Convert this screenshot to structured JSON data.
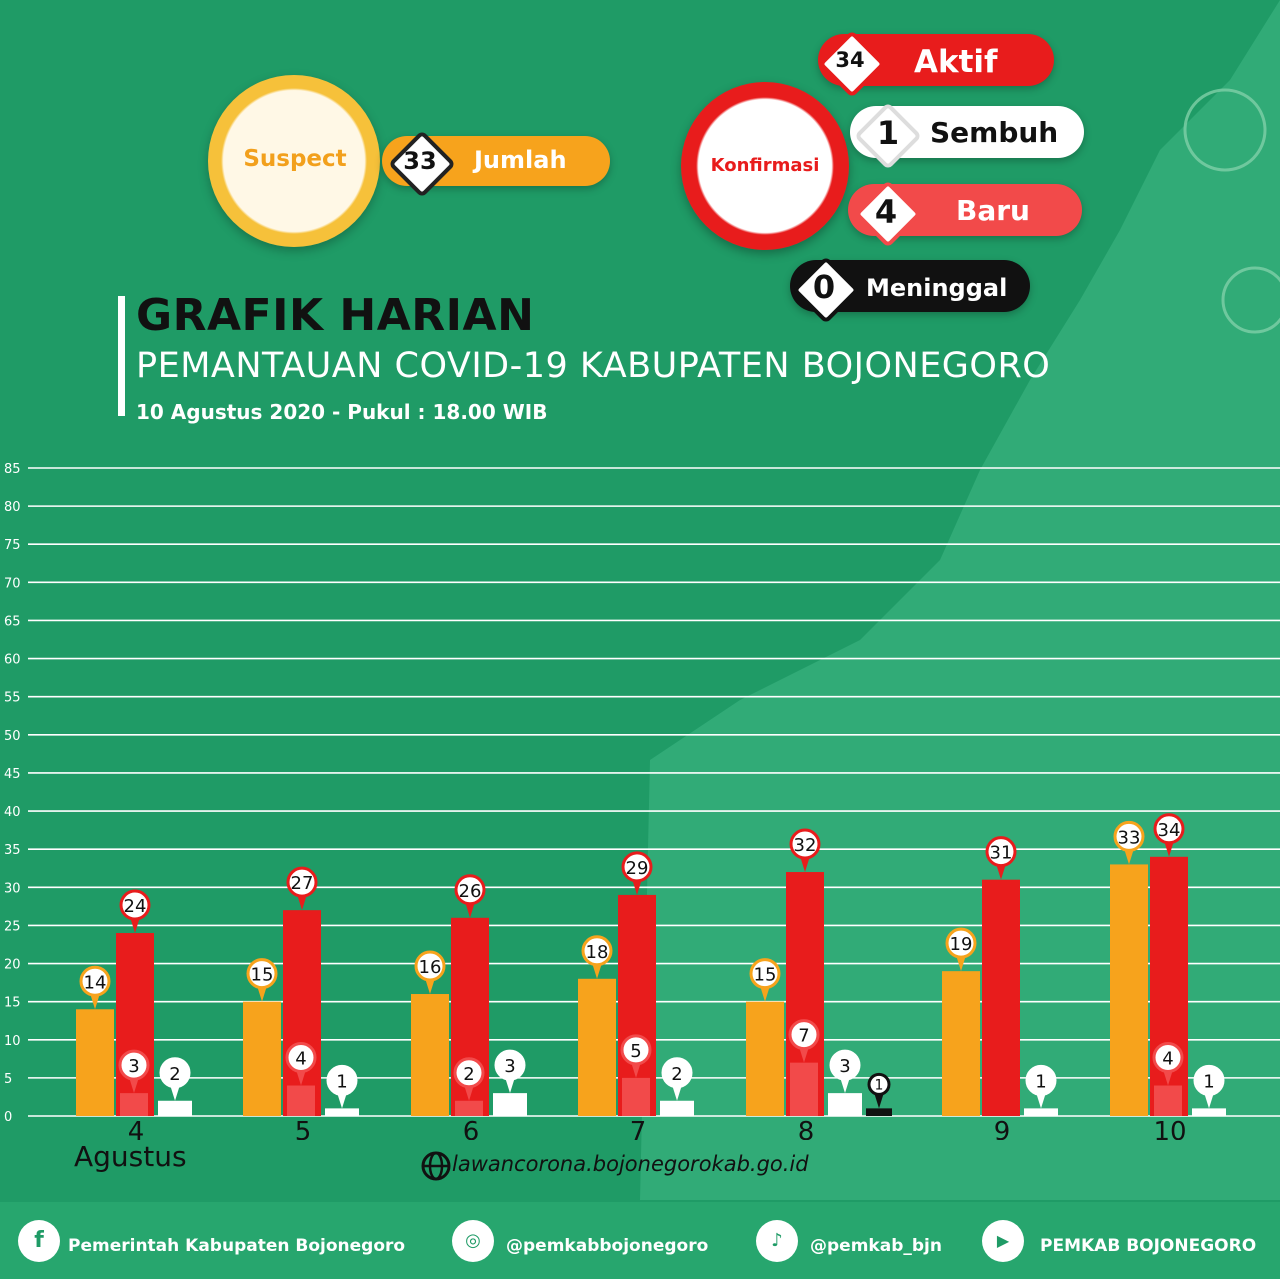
{
  "header": {
    "suspect_label": "Suspect",
    "suspect_value": "33",
    "suspect_sub_label": "Jumlah",
    "konfirmasi_label": "Konfirmasi",
    "aktif_value": "34",
    "aktif_label": "Aktif",
    "sembuh_value": "1",
    "sembuh_label": "Sembuh",
    "baru_value": "4",
    "baru_label": "Baru",
    "meninggal_value": "0",
    "meninggal_label": "Meninggal"
  },
  "title": {
    "line1": "GRAFIK HARIAN",
    "line2": "PEMANTAUAN COVID-19 KABUPATEN BOJONEGORO",
    "line3": "10 Agustus 2020 - Pukul : 18.00 WIB"
  },
  "colors": {
    "background": "#1f9b66",
    "suspect": "#f7a31c",
    "aktif": "#e81c1c",
    "baru": "#f24a4a",
    "sembuh": "#ffffff",
    "meninggal": "#111111"
  },
  "chart_data": {
    "type": "bar",
    "title": "",
    "xlabel": "",
    "ylabel": "",
    "month_label": "Agustus",
    "categories": [
      "4",
      "5",
      "6",
      "7",
      "8",
      "9",
      "10"
    ],
    "ylim": [
      0,
      85
    ],
    "yticks": [
      0,
      5,
      10,
      15,
      20,
      25,
      30,
      35,
      40,
      45,
      50,
      55,
      60,
      65,
      70,
      75,
      80,
      85
    ],
    "grid": true,
    "series": [
      {
        "key": "suspect",
        "values": [
          14,
          15,
          16,
          18,
          15,
          19,
          33
        ]
      },
      {
        "key": "aktif",
        "values": [
          24,
          27,
          26,
          29,
          32,
          31,
          34
        ]
      },
      {
        "key": "baru",
        "values": [
          3,
          4,
          2,
          5,
          7,
          null,
          4
        ]
      },
      {
        "key": "sembuh",
        "values": [
          2,
          1,
          3,
          2,
          3,
          1,
          1
        ]
      },
      {
        "key": "meninggal",
        "values": [
          null,
          null,
          null,
          null,
          1,
          null,
          null
        ]
      }
    ]
  },
  "footer": {
    "url": "lawancorona.bojonegorokab.go.id",
    "facebook": "Pemerintah Kabupaten Bojonegoro",
    "instagram": "@pemkabbojonegoro",
    "twitter": "@pemkab_bjn",
    "youtube": "PEMKAB BOJONEGORO"
  }
}
